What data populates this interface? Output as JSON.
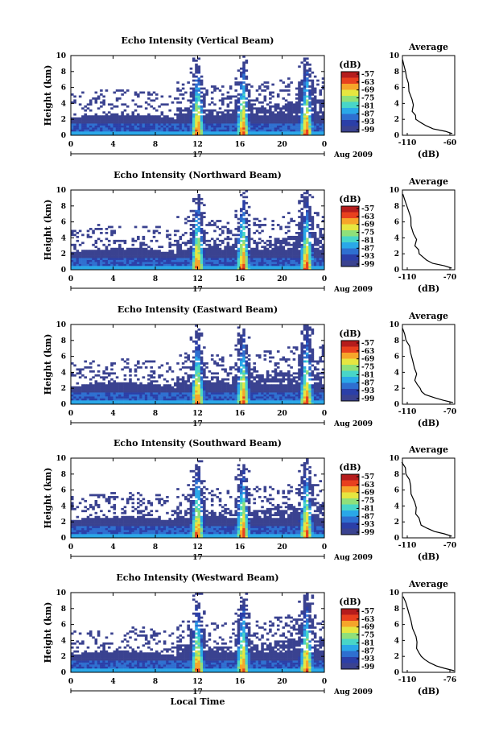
{
  "colors": {
    "colormap": [
      "#3a4290",
      "#2b3fa8",
      "#2e6fd0",
      "#2aa8e8",
      "#48d6c8",
      "#8fe07a",
      "#e6e640",
      "#f6a52a",
      "#e8401e",
      "#b51c1c"
    ]
  },
  "chart_data": [
    {
      "type": "heatmap",
      "title": "Echo Intensity (Vertical Beam)",
      "ylabel": "Height (km)",
      "xlabel": "",
      "x_ticks": [
        "0",
        "4",
        "8",
        "12",
        "16",
        "20",
        "0"
      ],
      "y_ticks": [
        "0",
        "2",
        "4",
        "6",
        "8",
        "10"
      ],
      "xlim": [
        0,
        24
      ],
      "ylim": [
        0,
        10
      ],
      "date_day": "17",
      "date_label": "Aug 2009",
      "colorbar": {
        "label": "(dB)",
        "ticks": [
          "-57",
          "-63",
          "-69",
          "-75",
          "-81",
          "-87",
          "-93",
          "-99"
        ]
      },
      "convective_peaks_hour": [
        12,
        16.3,
        22.3
      ],
      "profile": {
        "title": "Average",
        "xlabel": "(dB)",
        "x_ticks": [
          "-110",
          "-60"
        ],
        "xlim": [
          -110,
          -60
        ],
        "y_ticks": [
          "0",
          "2",
          "4",
          "6",
          "8",
          "10"
        ],
        "x": [
          -63,
          -70,
          -80,
          -88,
          -93,
          -96,
          -97,
          -100,
          -100,
          -102,
          -104,
          -105,
          -106,
          -108,
          -109,
          -110
        ],
        "y": [
          0.2,
          0.5,
          0.8,
          1.2,
          1.6,
          2.0,
          2.5,
          3.0,
          3.8,
          4.5,
          5.5,
          6.5,
          7.3,
          8.0,
          8.8,
          9.5
        ]
      }
    },
    {
      "type": "heatmap",
      "title": "Echo Intensity (Northward Beam)",
      "ylabel": "Height (km)",
      "xlabel": "",
      "x_ticks": [
        "0",
        "4",
        "8",
        "12",
        "16",
        "20",
        "0"
      ],
      "y_ticks": [
        "0",
        "2",
        "4",
        "6",
        "8",
        "10"
      ],
      "xlim": [
        0,
        24
      ],
      "ylim": [
        0,
        10
      ],
      "date_day": "17",
      "date_label": "Aug 2009",
      "colorbar": {
        "label": "(dB)",
        "ticks": [
          "-57",
          "-63",
          "-69",
          "-75",
          "-81",
          "-87",
          "-93",
          "-99"
        ]
      },
      "convective_peaks_hour": [
        12,
        16.3,
        22.3
      ],
      "profile": {
        "title": "Average",
        "xlabel": "(dB)",
        "x_ticks": [
          "-110",
          "-70"
        ],
        "xlim": [
          -110,
          -70
        ],
        "y_ticks": [
          "0",
          "2",
          "4",
          "6",
          "8",
          "10"
        ],
        "x": [
          -72,
          -78,
          -86,
          -92,
          -95,
          -97,
          -98,
          -100,
          -100,
          -101,
          -103,
          -104,
          -105,
          -107,
          -108,
          -110
        ],
        "y": [
          0.2,
          0.5,
          0.8,
          1.2,
          1.6,
          2.0,
          2.5,
          3.0,
          3.8,
          4.5,
          5.5,
          6.5,
          7.3,
          8.0,
          8.8,
          9.5
        ]
      }
    },
    {
      "type": "heatmap",
      "title": "Echo Intensity (Eastward Beam)",
      "ylabel": "Height (km)",
      "xlabel": "",
      "x_ticks": [
        "0",
        "4",
        "8",
        "12",
        "16",
        "20",
        "0"
      ],
      "y_ticks": [
        "0",
        "2",
        "4",
        "6",
        "8",
        "10"
      ],
      "xlim": [
        0,
        24
      ],
      "ylim": [
        0,
        10
      ],
      "date_day": "17",
      "date_label": "Aug 2009",
      "colorbar": {
        "label": "(dB)",
        "ticks": [
          "-57",
          "-63",
          "-69",
          "-75",
          "-81",
          "-87",
          "-93",
          "-99"
        ]
      },
      "convective_peaks_hour": [
        12,
        16.3,
        22.3
      ],
      "profile": {
        "title": "Average",
        "xlabel": "(dB)",
        "x_ticks": [
          "-110",
          "-70"
        ],
        "xlim": [
          -110,
          -70
        ],
        "y_ticks": [
          "0",
          "2",
          "4",
          "6",
          "8",
          "10"
        ],
        "x": [
          -72,
          -78,
          -86,
          -92,
          -95,
          -97,
          -98,
          -100,
          -100,
          -101,
          -103,
          -104,
          -105,
          -107,
          -108,
          -110
        ],
        "y": [
          0.2,
          0.5,
          0.8,
          1.2,
          1.6,
          2.0,
          2.5,
          3.0,
          3.8,
          4.5,
          5.5,
          6.5,
          7.3,
          8.0,
          8.8,
          9.5
        ]
      }
    },
    {
      "type": "heatmap",
      "title": "Echo Intensity (Southward Beam)",
      "ylabel": "Height (km)",
      "xlabel": "",
      "x_ticks": [
        "0",
        "4",
        "8",
        "12",
        "16",
        "20",
        "0"
      ],
      "y_ticks": [
        "0",
        "2",
        "4",
        "6",
        "8",
        "10"
      ],
      "xlim": [
        0,
        24
      ],
      "ylim": [
        0,
        10
      ],
      "date_day": "17",
      "date_label": "Aug 2009",
      "colorbar": {
        "label": "(dB)",
        "ticks": [
          "-57",
          "-63",
          "-69",
          "-75",
          "-81",
          "-87",
          "-93",
          "-99"
        ]
      },
      "convective_peaks_hour": [
        12,
        16.3,
        22.3
      ],
      "profile": {
        "title": "Average",
        "xlabel": "(dB)",
        "x_ticks": [
          "-110",
          "-70"
        ],
        "xlim": [
          -110,
          -70
        ],
        "y_ticks": [
          "0",
          "2",
          "4",
          "6",
          "8",
          "10"
        ],
        "x": [
          -72,
          -78,
          -86,
          -92,
          -95,
          -97,
          -98,
          -100,
          -100,
          -101,
          -103,
          -104,
          -105,
          -107,
          -108,
          -110
        ],
        "y": [
          0.2,
          0.5,
          0.8,
          1.2,
          1.6,
          2.0,
          2.5,
          3.0,
          3.8,
          4.5,
          5.5,
          6.5,
          7.3,
          8.0,
          8.8,
          9.5
        ]
      }
    },
    {
      "type": "heatmap",
      "title": "Echo Intensity (Westward Beam)",
      "ylabel": "Height (km)",
      "xlabel": "Local Time",
      "x_ticks": [
        "0",
        "4",
        "8",
        "12",
        "16",
        "20",
        "0"
      ],
      "y_ticks": [
        "0",
        "2",
        "4",
        "6",
        "8",
        "10"
      ],
      "xlim": [
        0,
        24
      ],
      "ylim": [
        0,
        10
      ],
      "date_day": "17",
      "date_label": "Aug 2009",
      "colorbar": {
        "label": "(dB)",
        "ticks": [
          "-57",
          "-63",
          "-69",
          "-75",
          "-81",
          "-87",
          "-93",
          "-99"
        ]
      },
      "convective_peaks_hour": [
        12,
        16.3,
        22.3
      ],
      "profile": {
        "title": "Average",
        "xlabel": "(dB)",
        "x_ticks": [
          "-110",
          "-76"
        ],
        "xlim": [
          -110,
          -76
        ],
        "y_ticks": [
          "0",
          "2",
          "4",
          "6",
          "8",
          "10"
        ],
        "x": [
          -77,
          -82,
          -88,
          -93,
          -96,
          -98,
          -99,
          -100,
          -100,
          -101,
          -103,
          -104,
          -105,
          -107,
          -108,
          -110
        ],
        "y": [
          0.2,
          0.5,
          0.8,
          1.2,
          1.6,
          2.0,
          2.5,
          3.0,
          3.8,
          4.5,
          5.5,
          6.5,
          7.3,
          8.0,
          8.8,
          9.5
        ]
      }
    }
  ]
}
